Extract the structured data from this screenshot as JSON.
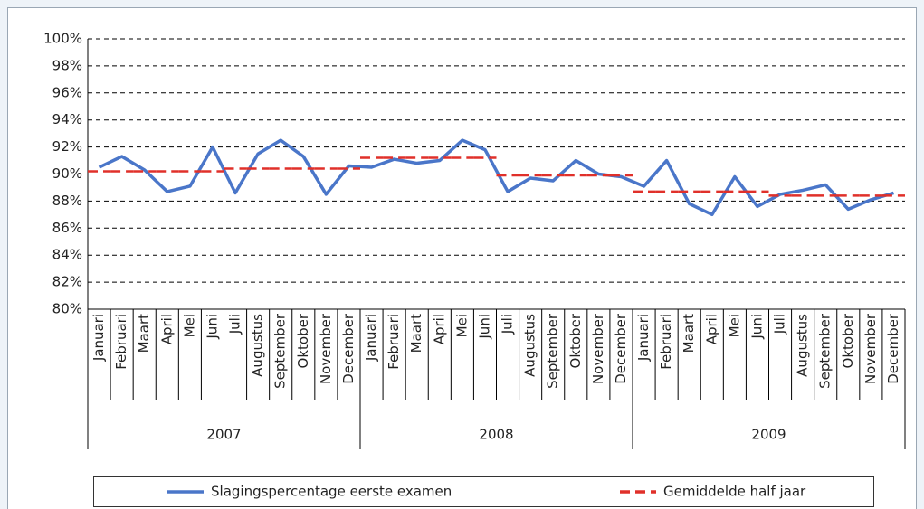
{
  "chart_data": {
    "type": "line",
    "categories": [
      "Januari",
      "Februari",
      "Maart",
      "April",
      "Mei",
      "Juni",
      "Juli",
      "Augustus",
      "September",
      "Oktober",
      "November",
      "December",
      "Januari",
      "Februari",
      "Maart",
      "April",
      "Mei",
      "Juni",
      "Juli",
      "Augustus",
      "September",
      "Oktober",
      "November",
      "December",
      "Januari",
      "Februari",
      "Maart",
      "April",
      "Mei",
      "Juni",
      "Juli",
      "Augustus",
      "September",
      "Oktober",
      "November",
      "December"
    ],
    "years": [
      "2007",
      "2008",
      "2009"
    ],
    "series": [
      {
        "name": "Slagingspercentage eerste examen",
        "color": "#4a76c9",
        "style": "solid",
        "values": [
          90.5,
          91.3,
          90.3,
          88.7,
          89.1,
          92.0,
          88.6,
          91.5,
          92.5,
          91.3,
          88.5,
          90.6,
          90.5,
          91.1,
          90.8,
          91.0,
          92.5,
          91.8,
          88.7,
          89.7,
          89.5,
          91.0,
          90.0,
          89.8,
          89.1,
          91.0,
          87.8,
          87.0,
          89.8,
          87.6,
          88.5,
          88.8,
          89.2,
          87.4,
          88.1,
          88.6
        ]
      },
      {
        "name": "Gemiddelde half jaar",
        "color": "#e0302a",
        "style": "dashed",
        "values": [
          90.2,
          90.2,
          90.2,
          90.2,
          90.2,
          90.2,
          90.4,
          90.4,
          90.4,
          90.4,
          90.4,
          90.4,
          91.2,
          91.2,
          91.2,
          91.2,
          91.2,
          91.2,
          89.9,
          89.9,
          89.9,
          89.9,
          89.9,
          89.9,
          88.7,
          88.7,
          88.7,
          88.7,
          88.7,
          88.7,
          88.4,
          88.4,
          88.4,
          88.4,
          88.4,
          88.4
        ]
      }
    ],
    "ylim": [
      80,
      100
    ],
    "yticks": [
      {
        "value": 80,
        "label": "80%"
      },
      {
        "value": 82,
        "label": "82%"
      },
      {
        "value": 84,
        "label": "84%"
      },
      {
        "value": 86,
        "label": "86%"
      },
      {
        "value": 88,
        "label": "88%"
      },
      {
        "value": 90,
        "label": "90%"
      },
      {
        "value": 92,
        "label": "92%"
      },
      {
        "value": 94,
        "label": "94%"
      },
      {
        "value": 96,
        "label": "96%"
      },
      {
        "value": 98,
        "label": "98%"
      },
      {
        "value": 100,
        "label": "100%"
      }
    ],
    "grid": true,
    "legend": "bottom"
  }
}
